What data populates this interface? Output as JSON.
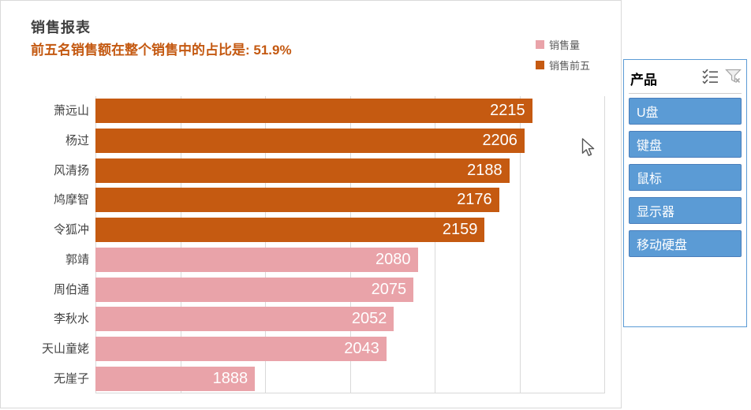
{
  "report": {
    "title": "销售报表",
    "subtitle": "前五名销售额在整个销售中的占比是: 51.9%",
    "title_color": "#3f3f3f",
    "subtitle_color": "#c45911"
  },
  "legend": {
    "position": "top-right",
    "items": [
      {
        "label": "销售量",
        "color": "#e9a3a9"
      },
      {
        "label": "销售前五",
        "color": "#c55a11"
      }
    ]
  },
  "chart_data": {
    "type": "bar",
    "orientation": "horizontal",
    "title": "销售报表",
    "subtitle": "前五名销售额在整个销售中的占比是: 51.9%",
    "categories": [
      "萧远山",
      "杨过",
      "风清扬",
      "鸠摩智",
      "令狐冲",
      "郭靖",
      "周伯通",
      "李秋水",
      "天山童姥",
      "无崖子"
    ],
    "values": [
      2215,
      2206,
      2188,
      2176,
      2159,
      2080,
      2075,
      2052,
      2043,
      1888
    ],
    "groups": [
      "销售前五",
      "销售前五",
      "销售前五",
      "销售前五",
      "销售前五",
      "销售量",
      "销售量",
      "销售量",
      "销售量",
      "销售量"
    ],
    "colors": {
      "销售前五": "#c55a11",
      "销售量": "#e9a3a9"
    },
    "xlim": [
      1700,
      2300
    ],
    "grid_step": 100,
    "grid": true,
    "gridline_color": "#d9d9d9",
    "value_labels": "inside-end",
    "value_label_color": "#ffffff",
    "axis_tick_labels": "hidden",
    "legend_position": "top-right"
  },
  "slicer": {
    "title": "产品",
    "icons": [
      {
        "name": "multi-select-icon"
      },
      {
        "name": "clear-filter-icon"
      }
    ],
    "items": [
      {
        "label": "U盘",
        "selected": true
      },
      {
        "label": "键盘",
        "selected": true
      },
      {
        "label": "鼠标",
        "selected": true
      },
      {
        "label": "显示器",
        "selected": true
      },
      {
        "label": "移动硬盘",
        "selected": true
      }
    ],
    "button_color": "#5b9bd5",
    "button_border_color": "#4a7ebb",
    "panel_border_color": "#5b9bd5"
  }
}
